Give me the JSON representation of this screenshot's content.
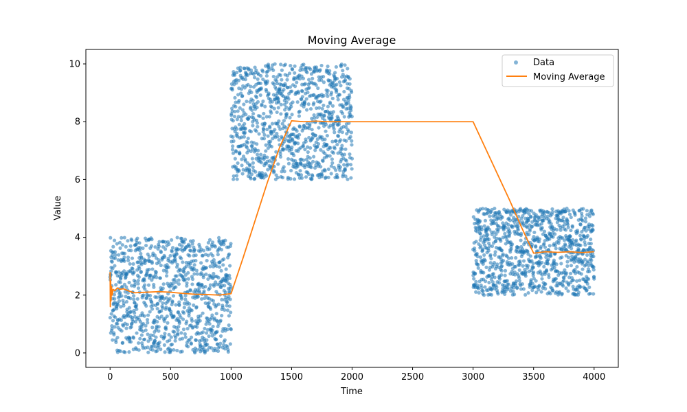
{
  "chart_data": {
    "type": "scatter",
    "title": "Moving Average",
    "xlabel": "Time",
    "ylabel": "Value",
    "xlim": [
      -200,
      4200
    ],
    "ylim": [
      -0.5,
      10.5
    ],
    "x_ticks": [
      0,
      500,
      1000,
      1500,
      2000,
      2500,
      3000,
      3500,
      4000
    ],
    "y_ticks": [
      0,
      2,
      4,
      6,
      8,
      10
    ],
    "grid": false,
    "legend": {
      "position": "top-right",
      "entries": [
        "Data",
        "Moving Average"
      ]
    },
    "series": [
      {
        "name": "Data",
        "kind": "scatter",
        "color": "#1f77b4",
        "segments": [
          {
            "x_start": 0,
            "x_end": 1000,
            "y_min": 0,
            "y_max": 4,
            "points": 1000
          },
          {
            "x_start": 1000,
            "x_end": 2000,
            "y_min": 6,
            "y_max": 10,
            "points": 1000
          },
          {
            "x_start": 3000,
            "x_end": 4000,
            "y_min": 2,
            "y_max": 5,
            "points": 1000
          }
        ]
      },
      {
        "name": "Moving Average",
        "kind": "line",
        "color": "#ff7f0e",
        "points": [
          [
            0,
            2.8
          ],
          [
            2,
            1.6
          ],
          [
            5,
            2.5
          ],
          [
            8,
            1.8
          ],
          [
            12,
            2.3
          ],
          [
            18,
            2.0
          ],
          [
            25,
            2.2
          ],
          [
            40,
            2.15
          ],
          [
            60,
            2.25
          ],
          [
            80,
            2.2
          ],
          [
            110,
            2.22
          ],
          [
            150,
            2.15
          ],
          [
            200,
            2.08
          ],
          [
            300,
            2.1
          ],
          [
            400,
            2.12
          ],
          [
            500,
            2.1
          ],
          [
            600,
            2.06
          ],
          [
            700,
            2.03
          ],
          [
            800,
            2.02
          ],
          [
            900,
            2.0
          ],
          [
            1000,
            2.05
          ],
          [
            1100,
            3.3
          ],
          [
            1200,
            4.6
          ],
          [
            1300,
            5.9
          ],
          [
            1400,
            7.1
          ],
          [
            1500,
            8.03
          ],
          [
            1600,
            8.0
          ],
          [
            1700,
            8.02
          ],
          [
            1800,
            8.0
          ],
          [
            2000,
            8.0
          ],
          [
            2500,
            8.0
          ],
          [
            3000,
            8.0
          ],
          [
            3100,
            7.1
          ],
          [
            3200,
            6.2
          ],
          [
            3300,
            5.3
          ],
          [
            3400,
            4.35
          ],
          [
            3500,
            3.45
          ],
          [
            3600,
            3.5
          ],
          [
            3700,
            3.48
          ],
          [
            3800,
            3.5
          ],
          [
            3900,
            3.47
          ],
          [
            4000,
            3.5
          ]
        ]
      }
    ]
  }
}
